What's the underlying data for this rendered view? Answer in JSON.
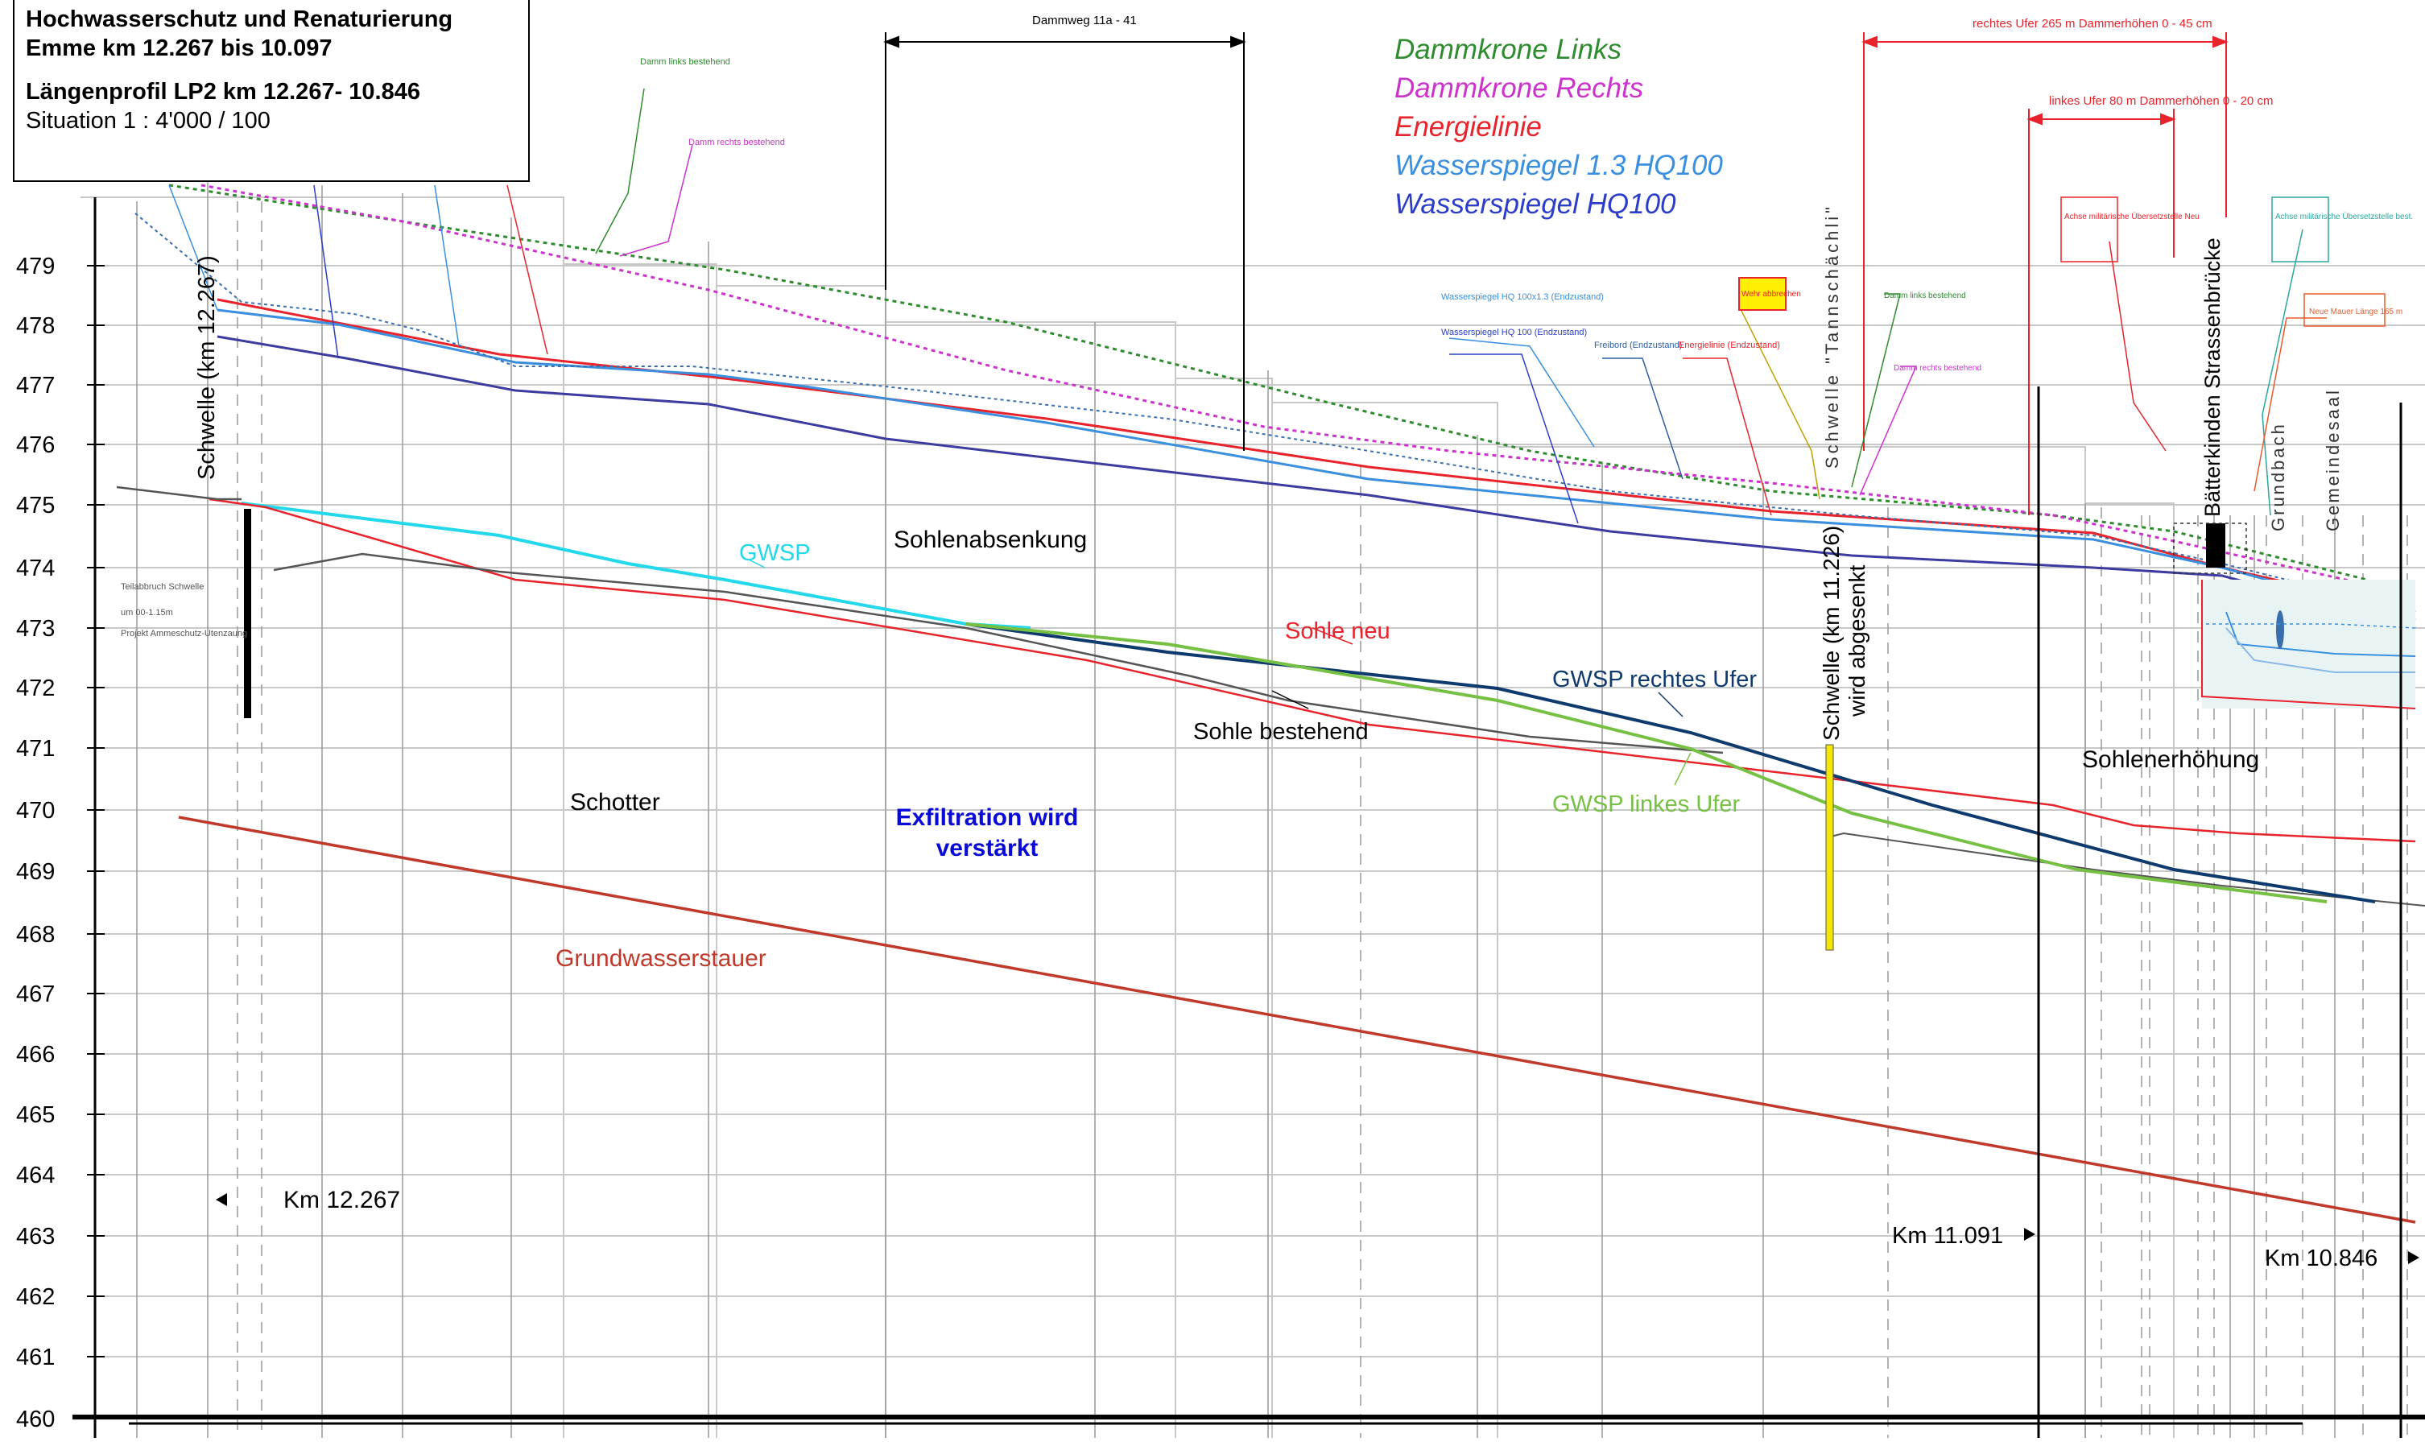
{
  "title_box": {
    "line1": "Hochwasserschutz und Renaturierung",
    "line2": "Emme km 12.267 bis 10.097",
    "line3": "Längenprofil LP2 km 12.267- 10.846",
    "line4": "Situation 1 : 4'000 / 100"
  },
  "legend": [
    {
      "label": "Dammkrone Links",
      "color": "#2e8b2e"
    },
    {
      "label": "Dammkrone Rechts",
      "color": "#cc33cc"
    },
    {
      "label": "Energielinie",
      "color": "#e8232b"
    },
    {
      "label": "Wasserspiegel 1.3 HQ100",
      "color": "#3a8fde"
    },
    {
      "label": "Wasserspiegel HQ100",
      "color": "#2c3ec9"
    }
  ],
  "y_axis": {
    "ticks": [
      "479",
      "478",
      "477",
      "476",
      "475",
      "474",
      "473",
      "472",
      "471",
      "470",
      "469",
      "468",
      "467",
      "466",
      "465",
      "464",
      "463",
      "462",
      "461",
      "460"
    ]
  },
  "labels": {
    "gwsp": "GWSP",
    "sohlenabsenkung": "Sohlenabsenkung",
    "sohle_neu": "Sohle neu",
    "sohle_bestehend": "Sohle bestehend",
    "gwsp_rechtes_ufer": "GWSP rechtes Ufer",
    "gwsp_linkes_ufer": "GWSP linkes Ufer",
    "schotter": "Schotter",
    "exfiltration_1": "Exfiltration wird",
    "exfiltration_2": "verstärkt",
    "grundwasserstauer": "Grundwasserstauer",
    "sohlenerhoehung": "Sohlenerhöhung",
    "schwelle_left": "Schwelle (km 12.267)",
    "schwelle_mid_1": "Schwelle (km 11.226)",
    "schwelle_mid_2": "wird abgesenkt",
    "tannschaechli": "Schwelle \"Tannschächli\"",
    "bruecke": "Bätterkinden Strassenbrücke",
    "grundbach": "Grundbach",
    "gemeindesaal": "Gemeindesaal",
    "km_12267": "Km 12.267",
    "km_11091": "Km 11.091",
    "km_10846": "Km 10.846"
  },
  "small_notes": {
    "dammweg": "Dammweg 11a - 41",
    "rechtes_ufer": "rechtes Ufer 265 m Dammerhöhen 0 - 45 cm",
    "linkes_ufer": "linkes Ufer 80 m Dammerhöhen 0 - 20 cm",
    "damm_links_bestehend": "Damm links bestehend",
    "damm_rechts_bestehend": "Damm rechts bestehend",
    "wsp_hq100x13": "Wasserspiegel HQ 100x1.3 (Endzustand)",
    "wsp_hq100": "Wasserspiegel HQ 100 (Endzustand)",
    "freibord": "Freibord (Endzustand)",
    "energielinie_end": "Energielinie (Endzustand)",
    "wehr": "Wehr abbrechen",
    "achse_neu": "Achse militärische Übersetzstelle Neu",
    "achse_best": "Achse militärische Übersetzstelle best.",
    "neue_mauer": "Neue Mauer Länge 165 m",
    "teilabbruch_1": "Teilabbruch Schwelle",
    "teilabbruch_2": "um 00-1.15m",
    "teilabbruch_3": "Projekt Ammeschutz-Utenzaung"
  }
}
